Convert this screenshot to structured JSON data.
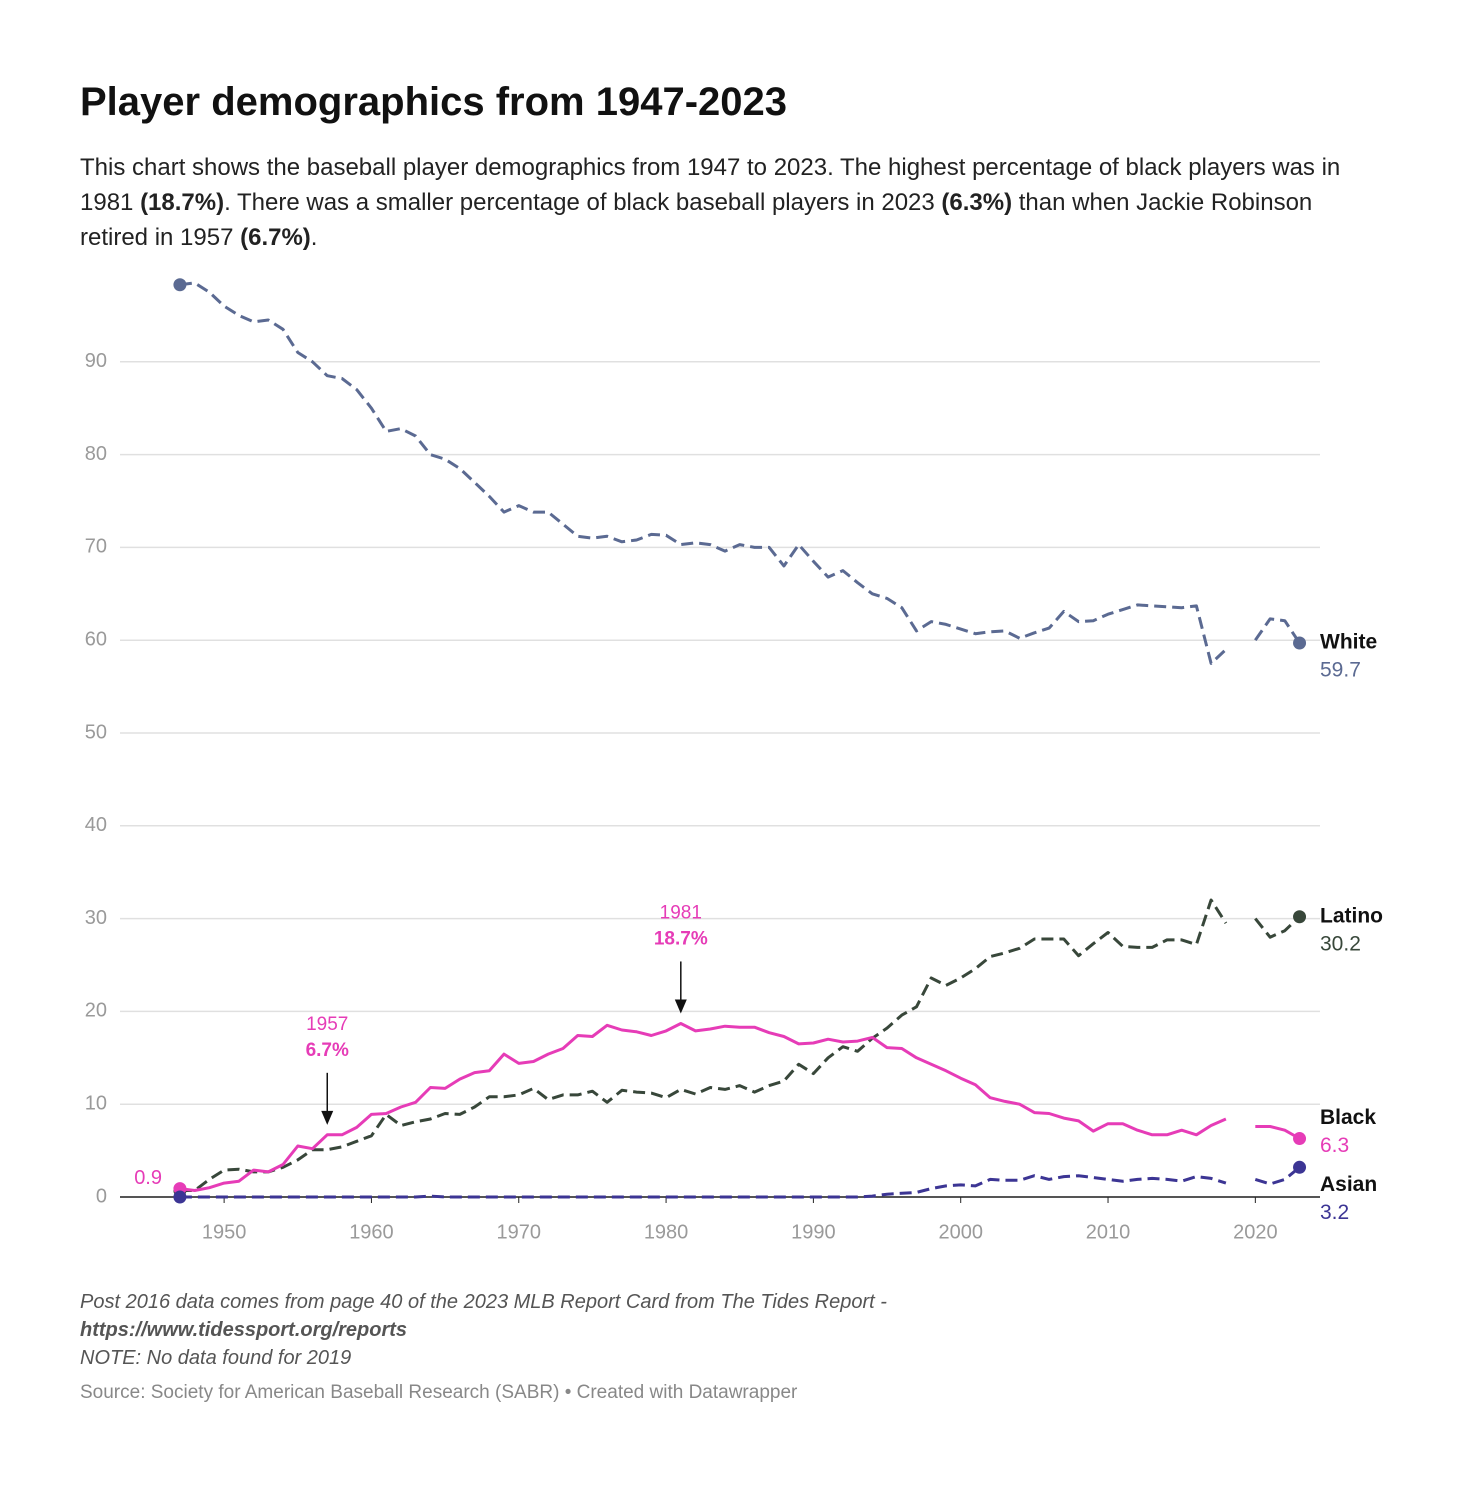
{
  "chart_data": {
    "type": "line",
    "title": "Player demographics from 1947-2023",
    "subtitle": [
      {
        "text": "This chart shows the baseball player demographics from 1947 to 2023. The highest percentage of black players was in 1981 "
      },
      {
        "text": "(18.7%)",
        "bold": true
      },
      {
        "text": ". There was a smaller percentage of black baseball players in 2023 "
      },
      {
        "text": "(6.3%)",
        "bold": true
      },
      {
        "text": " than when Jackie Robinson retired in 1957 "
      },
      {
        "text": "(6.7%)",
        "bold": true
      },
      {
        "text": "."
      }
    ],
    "x": [
      1947,
      1948,
      1949,
      1950,
      1951,
      1952,
      1953,
      1954,
      1955,
      1956,
      1957,
      1958,
      1959,
      1960,
      1961,
      1962,
      1963,
      1964,
      1965,
      1966,
      1967,
      1968,
      1969,
      1970,
      1971,
      1972,
      1973,
      1974,
      1975,
      1976,
      1977,
      1978,
      1979,
      1980,
      1981,
      1982,
      1983,
      1984,
      1985,
      1986,
      1987,
      1988,
      1989,
      1990,
      1991,
      1992,
      1993,
      1994,
      1995,
      1996,
      1997,
      1998,
      1999,
      2000,
      2001,
      2002,
      2003,
      2004,
      2005,
      2006,
      2007,
      2008,
      2009,
      2010,
      2011,
      2012,
      2013,
      2014,
      2015,
      2016,
      2017,
      2018,
      2019,
      2020,
      2021,
      2022,
      2023
    ],
    "series": [
      {
        "name": "White",
        "color": "#5b6a92",
        "dashed": true,
        "values": [
          98.3,
          98.5,
          97.5,
          96,
          95,
          94.3,
          94.5,
          93.5,
          91,
          90,
          88.5,
          88.2,
          87,
          85,
          82.5,
          82.8,
          82,
          80,
          79.5,
          78.5,
          77,
          75.5,
          73.8,
          74.5,
          73.8,
          73.8,
          72.5,
          71.2,
          71,
          71.2,
          70.6,
          70.8,
          71.4,
          71.3,
          70.3,
          70.5,
          70.3,
          69.6,
          70.3,
          70,
          70,
          68,
          70.3,
          68.5,
          66.8,
          67.5,
          66.2,
          65,
          64.5,
          63.5,
          61,
          62,
          61.7,
          61.2,
          60.7,
          60.9,
          61,
          60.2,
          60.8,
          61.3,
          63.1,
          62,
          62.1,
          62.8,
          63.3,
          63.8,
          63.7,
          63.6,
          63.5,
          63.7,
          57.5,
          59,
          null,
          60,
          62.3,
          62.1,
          59.7
        ]
      },
      {
        "name": "Latino",
        "color": "#38473a",
        "dashed": true,
        "values": [
          0.7,
          0.7,
          1.9,
          2.9,
          3,
          2.7,
          2.7,
          3.2,
          4,
          5.1,
          5.1,
          5.4,
          6,
          6.6,
          8.9,
          7.7,
          8.1,
          8.4,
          9,
          8.9,
          9.7,
          10.8,
          10.8,
          11,
          11.7,
          10.5,
          11,
          11,
          11.4,
          10.2,
          11.5,
          11.3,
          11.2,
          10.7,
          11.6,
          11.1,
          11.8,
          11.6,
          12,
          11.3,
          12,
          12.5,
          14.3,
          13.3,
          15,
          16.2,
          15.7,
          17.1,
          18.2,
          19.6,
          20.5,
          23.6,
          22.8,
          23.6,
          24.6,
          25.9,
          26.3,
          26.8,
          27.8,
          27.8,
          27.8,
          26,
          27.3,
          28.5,
          27,
          26.9,
          26.9,
          27.7,
          27.7,
          27.2,
          32,
          29.5,
          null,
          30,
          28,
          28.7,
          30.2
        ]
      },
      {
        "name": "Black",
        "color": "#e63cb7",
        "dashed": false,
        "values": [
          0.9,
          0.7,
          1,
          1.5,
          1.7,
          2.9,
          2.7,
          3.5,
          5.5,
          5.2,
          6.7,
          6.7,
          7.5,
          8.9,
          9,
          9.7,
          10.2,
          11.8,
          11.7,
          12.7,
          13.4,
          13.6,
          15.4,
          14.4,
          14.6,
          15.4,
          16,
          17.4,
          17.3,
          18.5,
          18,
          17.8,
          17.4,
          17.9,
          18.7,
          17.9,
          18.1,
          18.4,
          18.3,
          18.3,
          17.7,
          17.3,
          16.5,
          16.6,
          17,
          16.7,
          16.8,
          17.2,
          16.1,
          16,
          15,
          14.3,
          13.6,
          12.8,
          12.1,
          10.7,
          10.3,
          10,
          9.1,
          9,
          8.5,
          8.2,
          7.1,
          7.9,
          7.9,
          7.2,
          6.7,
          6.7,
          7.2,
          6.7,
          7.7,
          8.4,
          null,
          7.6,
          7.6,
          7.2,
          6.3
        ]
      },
      {
        "name": "Asian",
        "color": "#3c3594",
        "dashed": true,
        "values": [
          0,
          0,
          0,
          0,
          0,
          0,
          0,
          0,
          0,
          0,
          0,
          0,
          0,
          0,
          0,
          0,
          0,
          0.1,
          0,
          0,
          0,
          0,
          0,
          0,
          0,
          0,
          0,
          0,
          0,
          0,
          0,
          0,
          0,
          0,
          0,
          0,
          0,
          0,
          0,
          0,
          0,
          0,
          0,
          0,
          0,
          0,
          0,
          0.1,
          0.3,
          0.4,
          0.5,
          0.9,
          1.2,
          1.3,
          1.2,
          1.9,
          1.8,
          1.8,
          2.3,
          1.9,
          2.2,
          2.3,
          2.1,
          1.9,
          1.7,
          1.9,
          2,
          1.9,
          1.7,
          2.2,
          2,
          1.5,
          null,
          1.9,
          1.4,
          1.9,
          3.2
        ]
      }
    ],
    "annotations": [
      {
        "label": "1957",
        "text": "6.7%",
        "series": 2
      },
      {
        "label": "1981",
        "text": "18.7%",
        "series": 2
      }
    ],
    "xlim": [
      1943,
      2025
    ],
    "ylim": [
      0,
      100
    ],
    "xticks": [
      1950,
      1960,
      1970,
      1980,
      1990,
      2000,
      2010,
      2020
    ],
    "yticks": [
      0,
      10,
      20,
      30,
      40,
      50,
      60,
      70,
      80,
      90
    ],
    "grid": true,
    "notes": [
      {
        "text": "Post 2016 data comes from page 40 of the 2023 MLB Report Card from The Tides Report -"
      },
      {
        "text": "https://www.tidessport.org/reports",
        "bold": true
      },
      {
        "text": "NOTE: No data found for 2019"
      }
    ],
    "source": "Source: Society for American Baseball Research (SABR) • Created with Datawrapper"
  }
}
